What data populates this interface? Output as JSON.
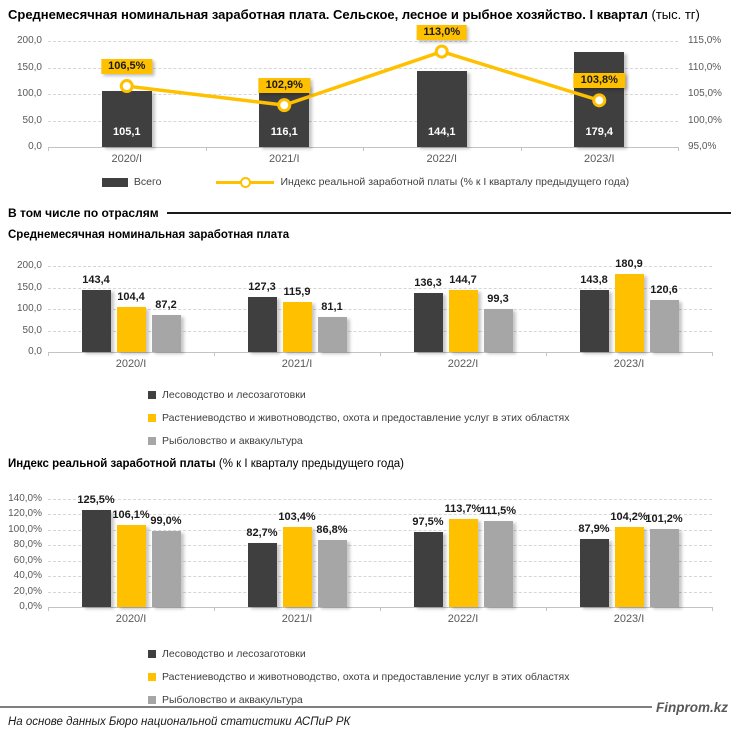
{
  "page": {
    "title_bold": "Среднемесячная номинальная заработная плата. Сельское, лесное и рыбное хозяйство. I квартал",
    "title_normal": " (тыс. тг)",
    "section_header": "В том числе по отраслям",
    "footer_note": "На основе данных Бюро национальной статистики АСПиР РК",
    "brand": "Finprom.kz"
  },
  "colors": {
    "dark": "#3f3f3f",
    "yellow": "#ffc000",
    "gray": "#a6a6a6",
    "grid": "#d6d6d6",
    "axis_text": "#595959"
  },
  "chart_data": [
    {
      "id": "combo",
      "type": "bar+line",
      "title": "Среднемесячная номинальная заработная плата. Сельское, лесное и рыбное хозяйство. I квартал (тыс. тг)",
      "categories": [
        "2020/I",
        "2021/I",
        "2022/I",
        "2023/I"
      ],
      "bar_series": {
        "name": "Всего",
        "color_key": "dark",
        "values": [
          105.1,
          116.1,
          144.1,
          179.4
        ],
        "labels": [
          "105,1",
          "116,1",
          "144,1",
          "179,4"
        ]
      },
      "line_series": {
        "name": "Индекс реальной заработной платы (% к I кварталу предыдущего года)",
        "color_key": "yellow",
        "values": [
          106.5,
          102.9,
          113.0,
          103.8
        ],
        "labels": [
          "106,5%",
          "102,9%",
          "113,0%",
          "103,8%"
        ]
      },
      "left_axis": {
        "min": 0,
        "max": 200,
        "ticks": [
          "200,0",
          "150,0",
          "100,0",
          "50,0",
          "0,0"
        ]
      },
      "right_axis": {
        "min": 95,
        "max": 115,
        "ticks": [
          "115,0%",
          "110,0%",
          "105,0%",
          "100,0%",
          "95,0%"
        ]
      },
      "grid": "dashed",
      "legend_position": "bottom"
    },
    {
      "id": "nominal",
      "type": "bar",
      "title_bold": "Среднемесячная номинальная заработная плата",
      "title_normal": "",
      "categories": [
        "2020/I",
        "2021/I",
        "2022/I",
        "2023/I"
      ],
      "series": [
        {
          "name": "Лесоводство и лесозаготовки",
          "color_key": "dark",
          "values": [
            143.4,
            127.3,
            136.3,
            143.8
          ],
          "labels": [
            "143,4",
            "127,3",
            "136,3",
            "143,8"
          ]
        },
        {
          "name": "Растениеводство и животноводство, охота и предоставление услуг в этих областях",
          "color_key": "yellow",
          "values": [
            104.4,
            115.9,
            144.7,
            180.9
          ],
          "labels": [
            "104,4",
            "115,9",
            "144,7",
            "180,9"
          ]
        },
        {
          "name": "Рыболовство и аквакультура",
          "color_key": "gray",
          "values": [
            87.2,
            81.1,
            99.3,
            120.6
          ],
          "labels": [
            "87,2",
            "81,1",
            "99,3",
            "120,6"
          ]
        }
      ],
      "axis": {
        "min": 0,
        "max": 200,
        "ticks": [
          "200,0",
          "150,0",
          "100,0",
          "50,0",
          "0,0"
        ]
      },
      "grid": "dashed",
      "legend_position": "bottom-left"
    },
    {
      "id": "index",
      "type": "bar",
      "title_bold": "Индекс реальной заработной платы",
      "title_normal": " (% к I кварталу предыдущего года)",
      "categories": [
        "2020/I",
        "2021/I",
        "2022/I",
        "2023/I"
      ],
      "series": [
        {
          "name": "Лесоводство и лесозаготовки",
          "color_key": "dark",
          "values": [
            125.5,
            82.7,
            97.5,
            87.9
          ],
          "labels": [
            "125,5%",
            "82,7%",
            "97,5%",
            "87,9%"
          ]
        },
        {
          "name": "Растениеводство и животноводство, охота и предоставление услуг в этих областях",
          "color_key": "yellow",
          "values": [
            106.1,
            103.4,
            113.7,
            104.2
          ],
          "labels": [
            "106,1%",
            "103,4%",
            "113,7%",
            "104,2%"
          ]
        },
        {
          "name": "Рыболовство и аквакультура",
          "color_key": "gray",
          "values": [
            99.0,
            86.8,
            111.5,
            101.2
          ],
          "labels": [
            "99,0%",
            "86,8%",
            "111,5%",
            "101,2%"
          ]
        }
      ],
      "axis": {
        "min": 0,
        "max": 140,
        "ticks": [
          "140,0%",
          "120,0%",
          "100,0%",
          "80,0%",
          "60,0%",
          "40,0%",
          "20,0%",
          "0,0%"
        ]
      },
      "grid": "dashed",
      "legend_position": "bottom-left"
    }
  ]
}
